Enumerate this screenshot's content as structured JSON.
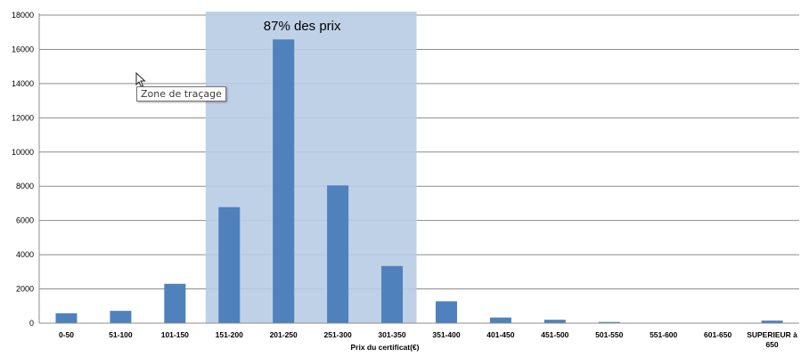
{
  "chart_data": {
    "type": "bar",
    "title": "",
    "xlabel": "Prix du certificat(€)",
    "ylabel": "",
    "ylim": [
      0,
      18000
    ],
    "yticks": [
      0,
      2000,
      4000,
      6000,
      8000,
      10000,
      12000,
      14000,
      16000,
      18000
    ],
    "grid": true,
    "categories": [
      "0-50",
      "51-100",
      "101-150",
      "151-200",
      "201-250",
      "251-300",
      "301-350",
      "351-400",
      "401-450",
      "451-500",
      "501-550",
      "551-600",
      "601-650",
      "SUPERIEUR à 650"
    ],
    "category_display": [
      [
        "0-50"
      ],
      [
        "51-100"
      ],
      [
        "101-150"
      ],
      [
        "151-200"
      ],
      [
        "201-250"
      ],
      [
        "251-300"
      ],
      [
        "301-350"
      ],
      [
        "351-400"
      ],
      [
        "401-450"
      ],
      [
        "451-500"
      ],
      [
        "501-550"
      ],
      [
        "551-600"
      ],
      [
        "601-650"
      ],
      [
        "SUPERIEUR à",
        "650"
      ]
    ],
    "values": [
      580,
      720,
      2300,
      6780,
      16580,
      8050,
      3340,
      1280,
      330,
      200,
      70,
      0,
      0,
      150
    ],
    "bar_color": "#4f81bd",
    "highlight": {
      "from_category": "151-200",
      "to_category": "301-350",
      "label": "87% des prix",
      "color": "#b8cce4"
    }
  },
  "tooltip": {
    "text": "Zone de traçage"
  }
}
